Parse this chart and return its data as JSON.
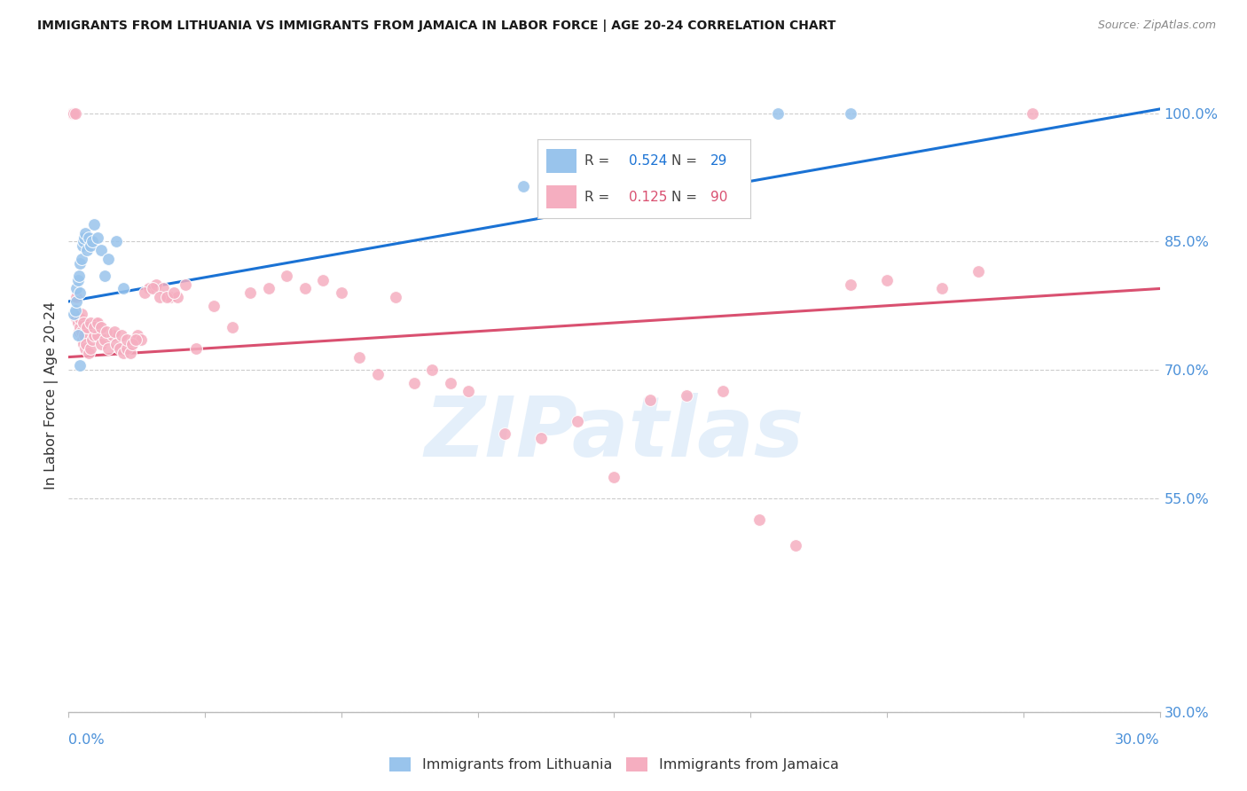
{
  "title": "IMMIGRANTS FROM LITHUANIA VS IMMIGRANTS FROM JAMAICA IN LABOR FORCE | AGE 20-24 CORRELATION CHART",
  "source": "Source: ZipAtlas.com",
  "ylabel": "In Labor Force | Age 20-24",
  "yaxis_ticks": [
    30.0,
    55.0,
    70.0,
    85.0,
    100.0
  ],
  "xmin": 0.0,
  "xmax": 30.0,
  "ymin": 30.0,
  "ymax": 104.0,
  "lithuania_color": "#99c4ec",
  "jamaica_color": "#f5aec0",
  "trendline_lithuania_color": "#1a72d4",
  "trendline_jamaica_color": "#d95070",
  "legend_R_lithuania": "0.524",
  "legend_N_lithuania": "29",
  "legend_R_jamaica": "0.125",
  "legend_N_jamaica": "90",
  "watermark_text": "ZIPatlas",
  "legend_label_lithuania": "Immigrants from Lithuania",
  "legend_label_jamaica": "Immigrants from Jamaica",
  "grid_color": "#cccccc",
  "axis_label_color": "#4a90d9",
  "title_color": "#1a1a1a",
  "source_color": "#888888",
  "lith_trendline_x0": 0.0,
  "lith_trendline_y0": 78.0,
  "lith_trendline_x1": 30.0,
  "lith_trendline_y1": 100.5,
  "jam_trendline_x0": 0.0,
  "jam_trendline_y0": 71.5,
  "jam_trendline_x1": 30.0,
  "jam_trendline_y1": 79.5,
  "lith_x": [
    0.15,
    0.18,
    0.2,
    0.22,
    0.25,
    0.28,
    0.3,
    0.32,
    0.35,
    0.38,
    0.4,
    0.42,
    0.45,
    0.5,
    0.55,
    0.6,
    0.65,
    0.7,
    0.8,
    0.9,
    1.0,
    1.1,
    1.3,
    1.5,
    0.25,
    0.3,
    12.5,
    19.5,
    21.5
  ],
  "lith_y": [
    76.5,
    77.0,
    78.0,
    79.5,
    80.5,
    81.0,
    79.0,
    82.5,
    83.0,
    84.5,
    85.0,
    85.5,
    86.0,
    84.0,
    85.5,
    84.5,
    85.0,
    87.0,
    85.5,
    84.0,
    81.0,
    83.0,
    85.0,
    79.5,
    74.0,
    70.5,
    91.5,
    100.0,
    100.0
  ],
  "jam_x": [
    0.1,
    0.12,
    0.15,
    0.18,
    0.2,
    0.22,
    0.25,
    0.28,
    0.3,
    0.32,
    0.35,
    0.38,
    0.4,
    0.42,
    0.45,
    0.48,
    0.5,
    0.55,
    0.6,
    0.65,
    0.7,
    0.75,
    0.8,
    0.9,
    1.0,
    1.1,
    1.2,
    1.3,
    1.4,
    1.5,
    1.6,
    1.7,
    1.8,
    1.9,
    2.0,
    2.2,
    2.4,
    2.6,
    2.8,
    3.0,
    3.5,
    4.0,
    4.5,
    5.0,
    5.5,
    6.0,
    6.5,
    7.0,
    7.5,
    8.0,
    8.5,
    9.0,
    9.5,
    10.0,
    10.5,
    11.0,
    12.0,
    13.0,
    14.0,
    15.0,
    16.0,
    17.0,
    18.0,
    19.0,
    20.0,
    21.5,
    22.5,
    24.0,
    25.0,
    26.5,
    0.3,
    0.35,
    0.4,
    0.5,
    0.6,
    0.7,
    0.8,
    0.9,
    1.05,
    1.25,
    1.45,
    1.6,
    1.75,
    1.85,
    2.1,
    2.3,
    2.5,
    2.7,
    2.9,
    3.2
  ],
  "jam_y": [
    100.0,
    100.0,
    100.0,
    100.0,
    78.5,
    76.0,
    75.5,
    74.5,
    76.0,
    75.0,
    74.5,
    73.5,
    73.0,
    74.0,
    72.5,
    73.0,
    75.0,
    72.0,
    72.5,
    73.5,
    74.0,
    75.5,
    74.0,
    73.0,
    73.5,
    72.5,
    74.0,
    73.0,
    72.5,
    72.0,
    72.5,
    72.0,
    73.5,
    74.0,
    73.5,
    79.5,
    80.0,
    79.5,
    78.5,
    78.5,
    72.5,
    77.5,
    75.0,
    79.0,
    79.5,
    81.0,
    79.5,
    80.5,
    79.0,
    71.5,
    69.5,
    78.5,
    68.5,
    70.0,
    68.5,
    67.5,
    62.5,
    62.0,
    64.0,
    57.5,
    66.5,
    67.0,
    67.5,
    52.5,
    49.5,
    80.0,
    80.5,
    79.5,
    81.5,
    100.0,
    76.0,
    76.5,
    75.5,
    75.0,
    75.5,
    75.0,
    75.5,
    75.0,
    74.5,
    74.5,
    74.0,
    73.5,
    73.0,
    73.5,
    79.0,
    79.5,
    78.5,
    78.5,
    79.0,
    80.0
  ]
}
